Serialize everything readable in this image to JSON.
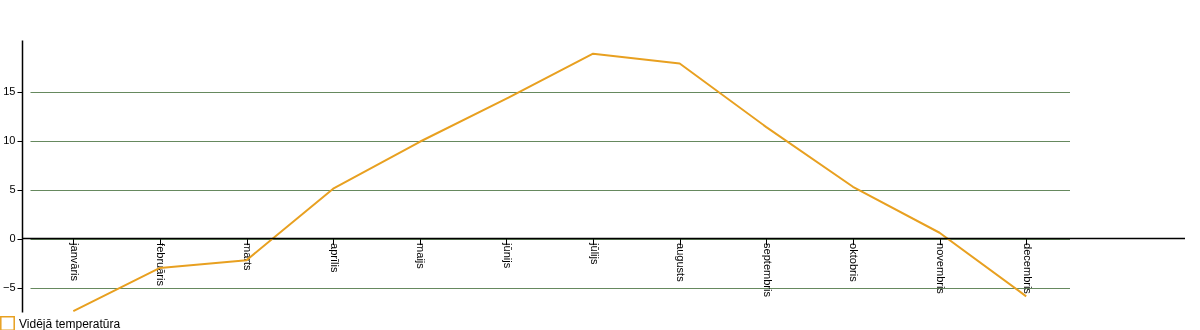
{
  "chart_data": {
    "type": "line",
    "categories": [
      "janvāris",
      "februāris",
      "marts",
      "aprīlis",
      "maijs",
      "jūnijs",
      "jūlijs",
      "augusts",
      "septembris",
      "oktobris",
      "novembris",
      "decembris"
    ],
    "series": [
      {
        "name": "Vidējā temperatūra",
        "color": "#e8a020",
        "values": [
          -7.4,
          -3.0,
          -2.2,
          5.1,
          9.9,
          14.3,
          18.9,
          17.9,
          11.4,
          5.3,
          0.6,
          -5.9
        ]
      }
    ],
    "ylim": [
      -7.5,
      20.3
    ],
    "yticks": [
      -5,
      0,
      5,
      10,
      15
    ],
    "grid": "y",
    "legend": "bottom left",
    "marker": "none",
    "line_style": "solid"
  }
}
